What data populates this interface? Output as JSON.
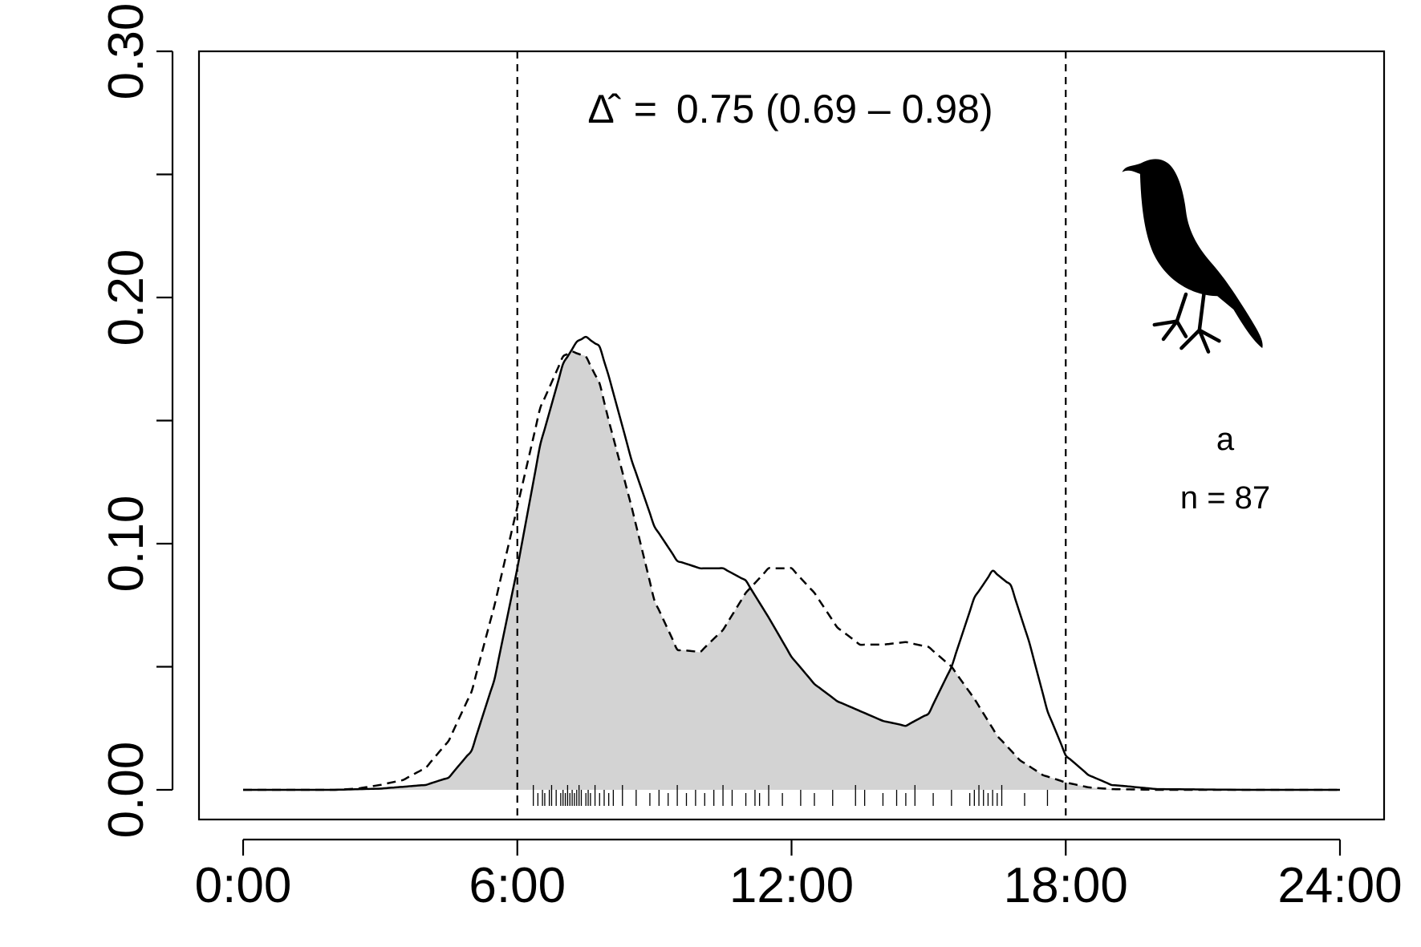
{
  "chart_data": {
    "type": "area",
    "title": "",
    "xlabel": "",
    "ylabel": "",
    "xlim": [
      0,
      24
    ],
    "ylim": [
      0,
      0.3
    ],
    "annotation": {
      "symbol": "Δ̂",
      "value": "0.75",
      "ci": "0.69 – 0.98",
      "equals": "="
    },
    "panel_letter": "a",
    "sample_size_label": "n = 87",
    "silhouette": "bird-icon",
    "x_ticks": [
      {
        "value": 0,
        "label": "0:00"
      },
      {
        "value": 6,
        "label": "6:00"
      },
      {
        "value": 12,
        "label": "12:00"
      },
      {
        "value": 18,
        "label": "18:00"
      },
      {
        "value": 24,
        "label": "24:00"
      }
    ],
    "y_ticks": [
      {
        "value": 0.0,
        "label": "0.00"
      },
      {
        "value": 0.05,
        "label": ""
      },
      {
        "value": 0.1,
        "label": "0.10"
      },
      {
        "value": 0.15,
        "label": ""
      },
      {
        "value": 0.2,
        "label": "0.20"
      },
      {
        "value": 0.25,
        "label": ""
      },
      {
        "value": 0.3,
        "label": "0.30"
      }
    ],
    "reference_lines": [
      6,
      18
    ],
    "overlap_fill": "#d3d3d3",
    "series": [
      {
        "style": "solid",
        "x": [
          0,
          2,
          3,
          4,
          4.5,
          5,
          5.5,
          6,
          6.5,
          7,
          7.3,
          7.5,
          7.8,
          8,
          8.5,
          9,
          9.5,
          10,
          10.5,
          11,
          11.5,
          12,
          12.5,
          13,
          13.5,
          14,
          14.5,
          15,
          15.5,
          16,
          16.4,
          16.8,
          17.2,
          17.6,
          18,
          18.5,
          19,
          20,
          22,
          24
        ],
        "y": [
          0,
          0,
          0.0005,
          0.002,
          0.005,
          0.016,
          0.045,
          0.09,
          0.14,
          0.173,
          0.182,
          0.184,
          0.18,
          0.168,
          0.134,
          0.107,
          0.093,
          0.09,
          0.09,
          0.085,
          0.07,
          0.054,
          0.043,
          0.036,
          0.032,
          0.028,
          0.026,
          0.031,
          0.05,
          0.078,
          0.089,
          0.083,
          0.06,
          0.032,
          0.014,
          0.006,
          0.002,
          0.0003,
          0,
          0
        ]
      },
      {
        "style": "dashed",
        "x": [
          0,
          2,
          2.5,
          3,
          3.5,
          4,
          4.5,
          5,
          5.5,
          6,
          6.5,
          7,
          7.2,
          7.5,
          7.8,
          8,
          8.5,
          9,
          9.5,
          10,
          10.5,
          11,
          11.5,
          12,
          12.5,
          13,
          13.5,
          14,
          14.5,
          15,
          15.5,
          16,
          16.5,
          17,
          17.5,
          18,
          18.5,
          19,
          20,
          22,
          24
        ],
        "y": [
          0,
          0,
          0.0005,
          0.002,
          0.004,
          0.009,
          0.02,
          0.04,
          0.075,
          0.115,
          0.155,
          0.176,
          0.178,
          0.176,
          0.165,
          0.15,
          0.115,
          0.077,
          0.057,
          0.056,
          0.065,
          0.08,
          0.09,
          0.09,
          0.08,
          0.066,
          0.059,
          0.059,
          0.06,
          0.058,
          0.05,
          0.037,
          0.022,
          0.012,
          0.006,
          0.003,
          0.001,
          0.0003,
          0,
          0,
          0
        ]
      }
    ],
    "rug": [
      6.35,
      6.45,
      6.55,
      6.6,
      6.7,
      6.75,
      6.85,
      6.95,
      7.0,
      7.05,
      7.1,
      7.15,
      7.2,
      7.25,
      7.3,
      7.35,
      7.4,
      7.5,
      7.55,
      7.6,
      7.7,
      7.8,
      7.9,
      8.0,
      8.1,
      8.3,
      8.6,
      8.9,
      9.1,
      9.3,
      9.5,
      9.7,
      9.9,
      10.1,
      10.3,
      10.5,
      10.7,
      11.0,
      11.2,
      11.3,
      11.5,
      11.8,
      12.2,
      12.5,
      12.9,
      13.4,
      13.6,
      14.0,
      14.3,
      14.5,
      14.7,
      15.1,
      15.5,
      15.9,
      16.0,
      16.1,
      16.2,
      16.3,
      16.4,
      16.5,
      16.6,
      17.1,
      17.6
    ]
  }
}
